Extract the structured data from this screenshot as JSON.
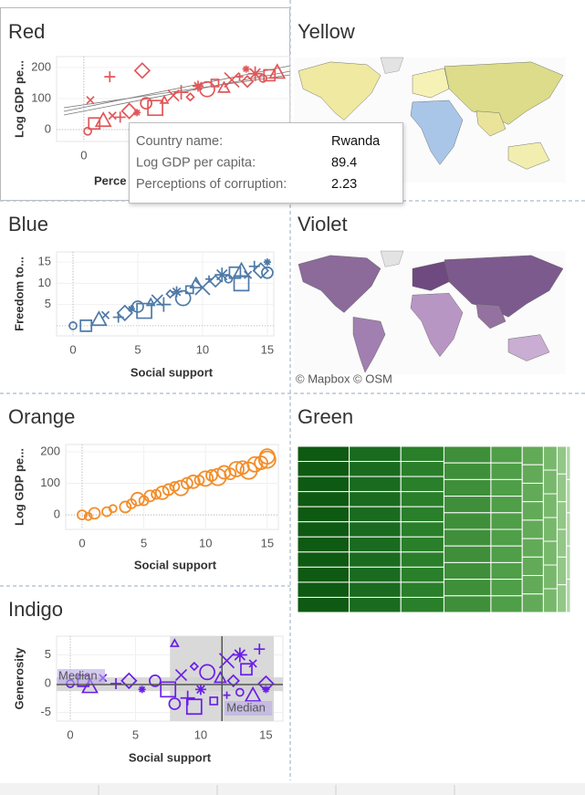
{
  "chart_data": [
    {
      "type": "scatter",
      "title": "Red",
      "ylabel": "Log GDP pe...",
      "xlabel": "Perce",
      "color": "#e15759",
      "x": [
        0.3,
        0.8,
        1.5,
        2.2,
        2.8,
        3.5,
        4.1,
        4.8,
        5.5,
        6.2,
        6.9,
        7.5,
        8.2,
        8.8,
        9.5,
        10.1,
        10.8,
        11.4,
        12,
        12.6,
        13.2,
        13.8,
        14.3,
        14.9,
        0.5,
        2,
        4.5,
        12.5
      ],
      "values": [
        -5,
        20,
        30,
        45,
        40,
        60,
        55,
        85,
        70,
        95,
        110,
        120,
        105,
        140,
        130,
        150,
        135,
        160,
        170,
        155,
        180,
        165,
        175,
        185,
        95,
        170,
        190,
        195
      ],
      "xlim": [
        -2.1,
        15.9
      ],
      "ylim": [
        -38,
        235
      ],
      "xticks": [
        0
      ],
      "yticks": [
        0,
        100,
        200
      ],
      "grid": true
    },
    {
      "type": "map",
      "title": "Yellow",
      "colors": [
        "#efe9a1",
        "#e4e08f",
        "#f6f2b6",
        "#a9c6e8",
        "#dcdc8a",
        "#f1eeb0",
        "#e9e49a"
      ]
    },
    {
      "type": "scatter",
      "title": "Blue",
      "ylabel": "Freedom to...",
      "xlabel": "Social support",
      "color": "#4e79a7",
      "x": [
        0,
        1,
        2,
        2.5,
        3.5,
        4,
        4.5,
        5,
        5.5,
        6,
        6.5,
        7,
        7.5,
        8,
        8.5,
        9,
        9.5,
        10,
        10.5,
        11,
        11.5,
        12,
        12.5,
        13,
        13.5,
        14,
        14.5,
        15,
        15,
        13
      ],
      "values": [
        0,
        0,
        1.5,
        2.5,
        2,
        3,
        4,
        4.5,
        3.5,
        5.5,
        6,
        5,
        7.5,
        8,
        6.5,
        8.5,
        10,
        9,
        11,
        10.5,
        12,
        11,
        12.5,
        13,
        12,
        14,
        13,
        15,
        12.5,
        10
      ],
      "xlim": [
        -1.27,
        15.5
      ],
      "ylim": [
        -2.4,
        17.4
      ],
      "xticks": [
        0,
        5,
        10,
        15
      ],
      "yticks": [
        5,
        10,
        15
      ],
      "grid": true
    },
    {
      "type": "map",
      "title": "Violet",
      "attribution": "© Mapbox © OSM",
      "colors": [
        "#8c6a9a",
        "#a17fb0",
        "#6e4a80",
        "#b896c4",
        "#7d5a8e",
        "#c9add3",
        "#94729f"
      ]
    },
    {
      "type": "scatter",
      "title": "Orange",
      "ylabel": "Log GDP pe...",
      "xlabel": "Social support",
      "color": "#f28e2b",
      "x": [
        0,
        0.5,
        1,
        2,
        2.5,
        3.5,
        4,
        4.5,
        5,
        5.5,
        6,
        6.5,
        7,
        7.5,
        8,
        8.5,
        9,
        9.5,
        10,
        10.5,
        11,
        11.5,
        12,
        12.5,
        13,
        13.5,
        14,
        14.5,
        15,
        15
      ],
      "values": [
        0,
        -5,
        5,
        10,
        20,
        25,
        35,
        50,
        45,
        60,
        65,
        70,
        80,
        90,
        85,
        100,
        105,
        110,
        115,
        125,
        120,
        135,
        130,
        145,
        150,
        140,
        160,
        165,
        175,
        185
      ],
      "sizes": [
        5,
        4,
        6,
        5,
        4,
        6,
        5,
        7,
        5,
        6,
        5,
        7,
        6,
        5,
        8,
        6,
        7,
        5,
        8,
        6,
        9,
        7,
        6,
        8,
        7,
        9,
        8,
        7,
        9,
        8
      ],
      "xlim": [
        -1.33,
        15.9
      ],
      "ylim": [
        -46,
        223
      ],
      "xticks": [
        0,
        5,
        10,
        15
      ],
      "yticks": [
        0,
        100,
        200
      ],
      "grid": true
    },
    {
      "type": "treemap",
      "title": "Green",
      "groups": [
        {
          "color": "#0e5a12",
          "values": [
            6,
            6,
            6,
            6,
            6,
            6,
            6,
            6,
            6,
            6,
            6
          ]
        },
        {
          "color": "#1a6b1f",
          "values": [
            6,
            6,
            6,
            6,
            6,
            6,
            6,
            6,
            6,
            6,
            6
          ]
        },
        {
          "color": "#2a7f2a",
          "values": [
            5,
            5,
            5,
            5,
            5,
            5,
            5,
            5,
            5,
            5,
            5
          ]
        },
        {
          "color": "#3f8f3a",
          "values": [
            6,
            6,
            6,
            6,
            6,
            6,
            6,
            6,
            6,
            6
          ]
        },
        {
          "color": "#4f9e48",
          "values": [
            4,
            4,
            4,
            4,
            4,
            4,
            4,
            4,
            4,
            4
          ]
        },
        {
          "color": "#62aa58",
          "values": [
            3,
            3,
            3,
            3,
            3,
            3,
            3,
            3,
            3
          ]
        },
        {
          "color": "#78b86c",
          "values": [
            2.5,
            2.5,
            2.5,
            2.5,
            2.5,
            2.5,
            2.5
          ]
        },
        {
          "color": "#93c787",
          "values": [
            2,
            2,
            2,
            2,
            2,
            2
          ]
        },
        {
          "color": "#b0d6a5",
          "values": [
            1,
            1,
            1,
            1,
            1
          ]
        }
      ]
    },
    {
      "type": "scatter",
      "title": "Indigo",
      "ylabel": "Generosity",
      "xlabel": "Social support",
      "color": "#6a1ee8",
      "x": [
        0,
        1,
        1.5,
        2.5,
        3.5,
        4.5,
        5.5,
        6.5,
        7.5,
        8,
        8.5,
        9,
        9.5,
        10,
        10.5,
        11,
        11.5,
        12,
        12,
        12.5,
        13,
        13,
        13.5,
        14,
        14,
        14.5,
        15,
        15,
        8,
        9.5
      ],
      "values": [
        0,
        0.5,
        -0.5,
        1,
        0,
        0.5,
        -1,
        0.5,
        -1,
        7,
        1.5,
        -2.5,
        3,
        -1,
        2,
        -3,
        1,
        4,
        -2,
        0.5,
        5,
        -1.5,
        2.5,
        -2,
        3.5,
        6,
        0,
        -1,
        -3.5,
        -4
      ],
      "xlim": [
        -1.05,
        16.3
      ],
      "ylim": [
        -6.5,
        8.25
      ],
      "xticks": [
        0,
        5,
        10,
        15
      ],
      "yticks": [
        -5,
        0,
        5
      ],
      "grid": true,
      "bands": {
        "x": [
          7.64,
          15.6
        ],
        "y": [
          -1.3,
          1.1
        ]
      },
      "reference_lines": [
        {
          "axis": "y",
          "value": -0.16,
          "label": "Median"
        },
        {
          "axis": "x",
          "value": 11.63,
          "label": "Median"
        }
      ]
    }
  ],
  "tooltip": {
    "rows": [
      {
        "label": "Country name:",
        "value": "Rwanda"
      },
      {
        "label": "Log GDP per capita:",
        "value": 89.4
      },
      {
        "label": "Perceptions of corruption:",
        "value": 2.23
      }
    ]
  }
}
